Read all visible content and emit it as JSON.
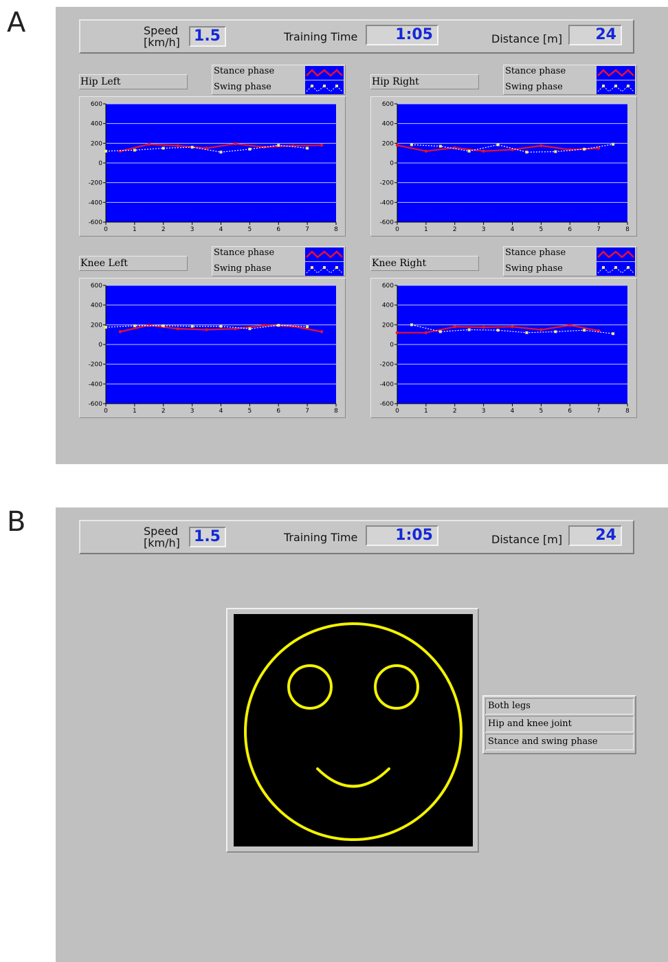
{
  "panels": {
    "a": {
      "letter": "A",
      "status": {
        "speed_label_line1": "Speed",
        "speed_label_line2": "[km/h]",
        "speed_value": "1.5",
        "time_label": "Training Time",
        "time_value": "1:05",
        "distance_label": "Distance [m]",
        "distance_value": "24"
      },
      "legend": {
        "stance": "Stance phase",
        "swing": "Swing phase"
      },
      "charts": [
        {
          "title": "Hip Left"
        },
        {
          "title": "Hip Right"
        },
        {
          "title": "Knee Left"
        },
        {
          "title": "Knee Right"
        }
      ]
    },
    "b": {
      "letter": "B",
      "status": {
        "speed_label_line1": "Speed",
        "speed_label_line2": "[km/h]",
        "speed_value": "1.5",
        "time_label": "Training Time",
        "time_value": "1:05",
        "distance_label": "Distance [m]",
        "distance_value": "24"
      },
      "feedback_items": [
        "Both legs",
        "Hip and knee joint",
        "Stance and swing phase"
      ]
    }
  },
  "colors": {
    "panel_bg": "#c0c0c0",
    "plot_bg": "#0000ff",
    "stance_line": "#e8122a",
    "swing_line": "#ffffff",
    "swing_marker": "#f2ea7a",
    "smiley_line": "#f2f200",
    "value_text": "#1428d8"
  },
  "chart_data": [
    {
      "type": "line",
      "title": "Hip Left",
      "xlim": [
        0,
        8
      ],
      "ylim": [
        -600,
        600
      ],
      "x_ticks": [
        0,
        1,
        2,
        3,
        4,
        5,
        6,
        7,
        8
      ],
      "y_ticks": [
        600,
        400,
        200,
        0,
        -200,
        -400,
        -600
      ],
      "series": [
        {
          "name": "Stance phase",
          "x": [
            0.5,
            1.5,
            2.5,
            3.5,
            4.5,
            5.5,
            6.5,
            7.5
          ],
          "y": [
            120,
            190,
            175,
            150,
            195,
            160,
            175,
            180
          ]
        },
        {
          "name": "Swing phase",
          "x": [
            0,
            1,
            2,
            3,
            4,
            5,
            6,
            7
          ],
          "y": [
            120,
            130,
            150,
            160,
            110,
            140,
            180,
            150
          ]
        }
      ]
    },
    {
      "type": "line",
      "title": "Hip Right",
      "xlim": [
        0,
        8
      ],
      "ylim": [
        -600,
        600
      ],
      "x_ticks": [
        0,
        1,
        2,
        3,
        4,
        5,
        6,
        7,
        8
      ],
      "y_ticks": [
        600,
        400,
        200,
        0,
        -200,
        -400,
        -600
      ],
      "series": [
        {
          "name": "Stance phase",
          "x": [
            0,
            1,
            2,
            3,
            4,
            5,
            6,
            7
          ],
          "y": [
            180,
            120,
            155,
            120,
            135,
            175,
            135,
            150
          ]
        },
        {
          "name": "Swing phase",
          "x": [
            0.5,
            1.5,
            2.5,
            3.5,
            4.5,
            5.5,
            6.5,
            7.5
          ],
          "y": [
            185,
            170,
            120,
            185,
            110,
            115,
            140,
            190
          ]
        }
      ]
    },
    {
      "type": "line",
      "title": "Knee Left",
      "xlim": [
        0,
        8
      ],
      "ylim": [
        -600,
        600
      ],
      "x_ticks": [
        0,
        1,
        2,
        3,
        4,
        5,
        6,
        7,
        8
      ],
      "y_ticks": [
        600,
        400,
        200,
        0,
        -200,
        -400,
        -600
      ],
      "series": [
        {
          "name": "Stance phase",
          "x": [
            0.5,
            1.5,
            2.5,
            3.5,
            4.5,
            5.5,
            6.5,
            7.5
          ],
          "y": [
            130,
            195,
            160,
            150,
            160,
            195,
            185,
            130
          ]
        },
        {
          "name": "Swing phase",
          "x": [
            0,
            1,
            2,
            3,
            4,
            5,
            6,
            7
          ],
          "y": [
            175,
            190,
            190,
            185,
            185,
            160,
            195,
            180
          ]
        }
      ]
    },
    {
      "type": "line",
      "title": "Knee Right",
      "xlim": [
        0,
        8
      ],
      "ylim": [
        -600,
        600
      ],
      "x_ticks": [
        0,
        1,
        2,
        3,
        4,
        5,
        6,
        7,
        8
      ],
      "y_ticks": [
        600,
        400,
        200,
        0,
        -200,
        -400,
        -600
      ],
      "series": [
        {
          "name": "Stance phase",
          "x": [
            0,
            1,
            2,
            3,
            4,
            5,
            6,
            7
          ],
          "y": [
            120,
            120,
            180,
            175,
            180,
            150,
            195,
            140
          ]
        },
        {
          "name": "Swing phase",
          "x": [
            0.5,
            1.5,
            2.5,
            3.5,
            4.5,
            5.5,
            6.5,
            7.5
          ],
          "y": [
            200,
            130,
            150,
            145,
            120,
            130,
            145,
            110
          ]
        }
      ]
    }
  ]
}
